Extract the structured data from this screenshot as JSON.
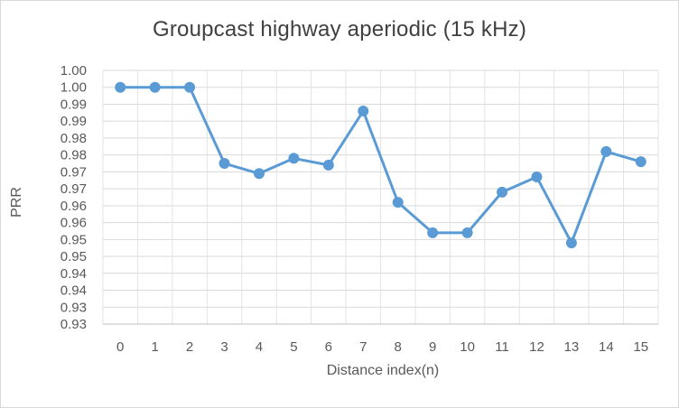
{
  "chart_data": {
    "type": "line",
    "title": "Groupcast highway aperiodic (15 kHz)",
    "xlabel": "Distance index(n)",
    "ylabel": "PRR",
    "categories": [
      "0",
      "1",
      "2",
      "3",
      "4",
      "5",
      "6",
      "7",
      "8",
      "9",
      "10",
      "11",
      "12",
      "13",
      "14",
      "15"
    ],
    "series": [
      {
        "values": [
          1.0,
          1.0,
          1.0,
          0.9775,
          0.9745,
          0.979,
          0.977,
          0.993,
          0.966,
          0.957,
          0.957,
          0.969,
          0.9735,
          0.954,
          0.981,
          0.978
        ],
        "color": "#5b9bd5"
      }
    ],
    "ylim": [
      0.93,
      1.0
    ],
    "yticks": [
      0.93,
      0.935,
      0.94,
      0.945,
      0.95,
      0.955,
      0.96,
      0.965,
      0.97,
      0.975,
      0.98,
      0.985,
      0.99,
      0.995,
      1.0,
      1.005
    ],
    "ytick_labels": [
      "0.93",
      "0.93",
      "0.94",
      "0.94",
      "0.95",
      "0.95",
      "0.96",
      "0.96",
      "0.97",
      "0.97",
      "0.98",
      "0.98",
      "0.99",
      "0.99",
      "1.00",
      "1.00"
    ],
    "grid": true,
    "legend": "none"
  }
}
